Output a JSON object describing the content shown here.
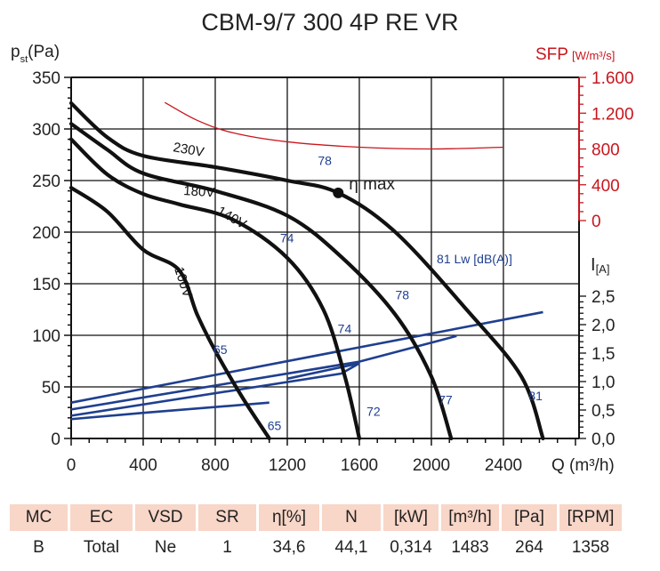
{
  "chart_data": {
    "type": "line",
    "title": "CBM-9/7 300 4P RE VR",
    "xlabel": "Q (m³/h)",
    "ylabel_main": "p",
    "ylabel_sub": "st",
    "ylabel_unit": "(Pa)",
    "xlim": [
      0,
      2820
    ],
    "ylim": [
      0,
      350
    ],
    "x_ticks": [
      0,
      400,
      800,
      1200,
      1600,
      2000,
      2400
    ],
    "x_tick_labels": [
      "0",
      "400",
      "800",
      "1200",
      "1600",
      "2000",
      "2400"
    ],
    "y_ticks": [
      0,
      50,
      100,
      150,
      200,
      250,
      300,
      350
    ],
    "y_tick_labels": [
      "0",
      "50",
      "100",
      "150",
      "200",
      "250",
      "300",
      "350"
    ],
    "grid": true,
    "sfp_axis": {
      "label": "SFP",
      "unit": "[W/m³/s]",
      "range": [
        0,
        1600
      ],
      "ticks": [
        0,
        400,
        800,
        1200,
        1600
      ],
      "tick_labels": [
        "0",
        "400",
        "800",
        "1.200",
        "1.600"
      ],
      "color": "#c8161d"
    },
    "current_axis": {
      "label": "I",
      "unit": "[A]",
      "range": [
        0,
        2.5
      ],
      "ticks": [
        0,
        0.5,
        1.0,
        1.5,
        2.0,
        2.5
      ],
      "tick_labels": [
        "0,0",
        "0,5",
        "1,0",
        "1,5",
        "2,0",
        "2,5"
      ]
    },
    "pressure_series": [
      {
        "name": "230V",
        "label": "230V",
        "points": [
          [
            0,
            325
          ],
          [
            200,
            292
          ],
          [
            400,
            274
          ],
          [
            800,
            263
          ],
          [
            1200,
            250
          ],
          [
            1483,
            238
          ],
          [
            1800,
            200
          ],
          [
            2200,
            124
          ],
          [
            2500,
            60
          ],
          [
            2620,
            0
          ]
        ]
      },
      {
        "name": "180V",
        "label": "180V",
        "points": [
          [
            0,
            305
          ],
          [
            200,
            280
          ],
          [
            400,
            257
          ],
          [
            800,
            240
          ],
          [
            1200,
            216
          ],
          [
            1500,
            176
          ],
          [
            1800,
            120
          ],
          [
            2000,
            60
          ],
          [
            2110,
            0
          ]
        ]
      },
      {
        "name": "140V",
        "label": "140V",
        "points": [
          [
            0,
            290
          ],
          [
            200,
            256
          ],
          [
            400,
            237
          ],
          [
            600,
            227
          ],
          [
            900,
            212
          ],
          [
            1200,
            175
          ],
          [
            1400,
            125
          ],
          [
            1520,
            60
          ],
          [
            1600,
            0
          ]
        ]
      },
      {
        "name": "100V",
        "label": "100V",
        "points": [
          [
            0,
            243
          ],
          [
            200,
            220
          ],
          [
            400,
            183
          ],
          [
            600,
            163
          ],
          [
            700,
            120
          ],
          [
            800,
            85
          ],
          [
            950,
            40
          ],
          [
            1100,
            0
          ]
        ]
      }
    ],
    "sfp_series": {
      "name": "SFP",
      "points": [
        [
          520,
          1320
        ],
        [
          700,
          1120
        ],
        [
          900,
          980
        ],
        [
          1200,
          880
        ],
        [
          1600,
          820
        ],
        [
          2000,
          800
        ],
        [
          2400,
          820
        ]
      ]
    },
    "current_series": [
      {
        "name": "I 230V",
        "points": [
          [
            0,
            0.63
          ],
          [
            2620,
            2.22
          ]
        ]
      },
      {
        "name": "I 180V",
        "points": [
          [
            0,
            0.51
          ],
          [
            1600,
            1.35
          ],
          [
            2140,
            1.8
          ]
        ]
      },
      {
        "name": "I 140V",
        "points": [
          [
            0,
            0.4
          ],
          [
            1500,
            1.14
          ],
          [
            1600,
            1.32
          ],
          [
            1200,
            1.05
          ]
        ]
      },
      {
        "name": "I 100V",
        "points": [
          [
            0,
            0.34
          ],
          [
            400,
            0.45
          ],
          [
            1100,
            0.63
          ]
        ]
      }
    ],
    "eta_max": {
      "label": "η max",
      "q": 1483,
      "p": 238
    },
    "sound_labels": [
      {
        "text": "78",
        "q": 1370,
        "p": 265
      },
      {
        "text": "74",
        "q": 1160,
        "p": 190
      },
      {
        "text": "81 Lw [dB(A)]",
        "q": 2030,
        "p": 170
      },
      {
        "text": "78",
        "q": 1800,
        "p": 135
      },
      {
        "text": "65",
        "q": 790,
        "p": 82
      },
      {
        "text": "74",
        "q": 1480,
        "p": 102
      },
      {
        "text": "65",
        "q": 1090,
        "p": 8
      },
      {
        "text": "72",
        "q": 1640,
        "p": 22
      },
      {
        "text": "77",
        "q": 2040,
        "p": 33
      },
      {
        "text": "81",
        "q": 2540,
        "p": 37
      }
    ],
    "annotations": [
      "η max",
      "81 Lw [dB(A)]"
    ]
  },
  "spec_table": {
    "headers": [
      "MC",
      "EC",
      "VSD",
      "SR",
      "η[%]",
      "N",
      "[kW]",
      "[m³/h]",
      "[Pa]",
      "[RPM]"
    ],
    "values": [
      "B",
      "Total",
      "Ne",
      "1",
      "34,6",
      "44,1",
      "0,314",
      "1483",
      "264",
      "1358"
    ]
  },
  "colors": {
    "pressure": "#111111",
    "sfp": "#c8161d",
    "current": "#1f3f8f",
    "table_header_bg": "#f8d6c8"
  }
}
